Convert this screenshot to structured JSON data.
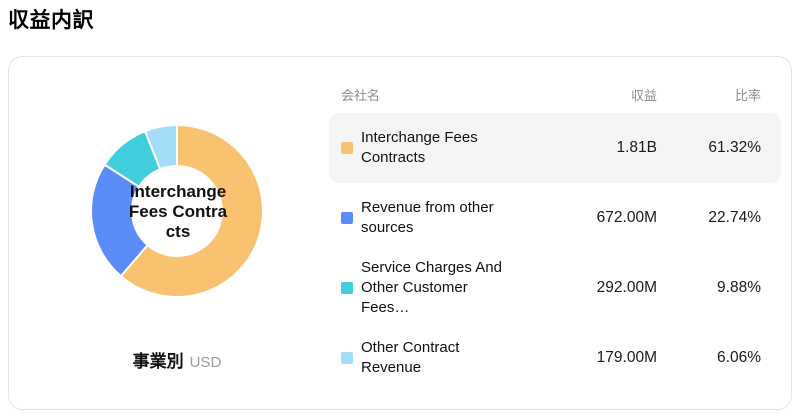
{
  "page": {
    "title": "収益内訳"
  },
  "chart": {
    "center_label": "Interchange Fees Contracts",
    "footer_label": "事業別",
    "footer_currency": "USD"
  },
  "table": {
    "headers": {
      "name": "会社名",
      "revenue": "収益",
      "ratio": "比率"
    },
    "rows": [
      {
        "name": "Interchange Fees Contracts",
        "revenue": "1.81B",
        "ratio": "61.32%",
        "color": "#F9C270",
        "highlighted": true
      },
      {
        "name": "Revenue from other sources",
        "revenue": "672.00M",
        "ratio": "22.74%",
        "color": "#5B8DF8",
        "highlighted": false
      },
      {
        "name": "Service Charges And Other Customer Fees…",
        "revenue": "292.00M",
        "ratio": "9.88%",
        "color": "#40CEDC",
        "highlighted": false
      },
      {
        "name": "Other Contract Revenue",
        "revenue": "179.00M",
        "ratio": "6.06%",
        "color": "#A3DCF8",
        "highlighted": false
      }
    ]
  },
  "chart_data": {
    "type": "pie",
    "donut": true,
    "title": "収益内訳",
    "dimension_label": "事業別",
    "currency": "USD",
    "labels": [
      "Interchange Fees Contracts",
      "Revenue from other sources",
      "Service Charges And Other Customer Fees…",
      "Other Contract Revenue"
    ],
    "values_percent": [
      61.32,
      22.74,
      9.88,
      6.06
    ],
    "revenues": [
      "1.81B",
      "672.00M",
      "292.00M",
      "179.00M"
    ],
    "colors": [
      "#F9C270",
      "#5B8DF8",
      "#40CEDC",
      "#A3DCF8"
    ],
    "center_label": "Interchange Fees Contracts",
    "start_angle_deg_from_top": 0,
    "direction": "clockwise",
    "legend_position": "right-table"
  }
}
